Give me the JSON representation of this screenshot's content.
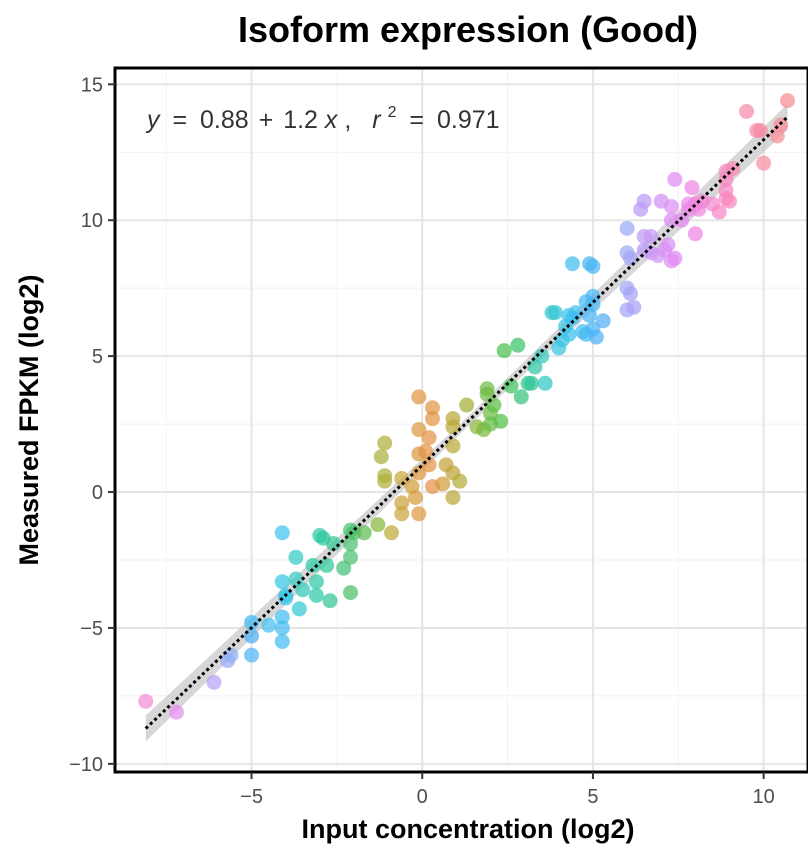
{
  "chart_data": {
    "type": "scatter",
    "title": "Isoform expression (Good)",
    "xlabel": "Input concentration (log2)",
    "ylabel": "Measured FPKM (log2)",
    "xlim": [
      -9,
      11.3
    ],
    "ylim": [
      -10.3,
      15.6
    ],
    "x_ticks": [
      -5,
      0,
      5,
      10
    ],
    "y_ticks": [
      -10,
      -5,
      0,
      5,
      10,
      15
    ],
    "x_tick_labels": [
      "−5",
      "0",
      "5",
      "10"
    ],
    "y_tick_labels": [
      "−10",
      "−5",
      "0",
      "5",
      "10",
      "15"
    ],
    "grid": true,
    "legend": "none",
    "annotation": {
      "y_var": "y",
      "equals": "=",
      "intercept": "0.88",
      "plus": "+",
      "slope": "1.2",
      "x_var": "x",
      "comma": ",",
      "r_var": "r",
      "r_power": "2",
      "r_equals": "=",
      "r2": "0.971"
    },
    "fit_line": {
      "from": [
        -8.1,
        -8.7
      ],
      "to": [
        10.7,
        13.8
      ],
      "ci_halfwidth": 0.3,
      "color": "#000000",
      "ci_color": "#bdbdbd"
    },
    "points": [
      [
        -8.1,
        -7.7,
        "#f28cd5"
      ],
      [
        -7.2,
        -8.1,
        "#e58cf0"
      ],
      [
        -6.1,
        -7.0,
        "#b7a1f5"
      ],
      [
        -5.7,
        -6.2,
        "#9aa6f5"
      ],
      [
        -5.6,
        -6.0,
        "#8eb0f5"
      ],
      [
        -5.0,
        -6.0,
        "#4cb5f5"
      ],
      [
        -5.0,
        -4.8,
        "#3fbaf2"
      ],
      [
        -5.0,
        -5.3,
        "#4bb3f4"
      ],
      [
        -4.5,
        -4.9,
        "#45bff0"
      ],
      [
        -4.1,
        -1.5,
        "#40c4ee"
      ],
      [
        -4.1,
        -3.3,
        "#38c7e3"
      ],
      [
        -4.0,
        -3.8,
        "#38c7e3"
      ],
      [
        -4.1,
        -4.6,
        "#44bdf1"
      ],
      [
        -4.1,
        -5.0,
        "#44bdf1"
      ],
      [
        -4.1,
        -5.5,
        "#44bdf1"
      ],
      [
        -4.0,
        -3.9,
        "#3ec5e8"
      ],
      [
        -3.7,
        -2.4,
        "#35c9c4"
      ],
      [
        -3.7,
        -3.2,
        "#35c9c4"
      ],
      [
        -3.6,
        -4.3,
        "#35c9d2"
      ],
      [
        -3.5,
        -3.6,
        "#34c8b4"
      ],
      [
        -3.2,
        -2.7,
        "#2fc9a8"
      ],
      [
        -3.1,
        -3.3,
        "#2fc9a8"
      ],
      [
        -3.1,
        -3.8,
        "#2fc9a8"
      ],
      [
        -3.0,
        -1.6,
        "#2ec8a0"
      ],
      [
        -2.9,
        -1.7,
        "#2ec8a0"
      ],
      [
        -2.8,
        -2.7,
        "#30c79a"
      ],
      [
        -2.7,
        -4.0,
        "#33c594"
      ],
      [
        -2.6,
        -1.9,
        "#33c594"
      ],
      [
        -2.3,
        -2.8,
        "#43c178"
      ],
      [
        -2.1,
        -1.4,
        "#4ac06f"
      ],
      [
        -2.1,
        -1.9,
        "#4ac06f"
      ],
      [
        -2.1,
        -2.4,
        "#4ac06f"
      ],
      [
        -2.1,
        -3.7,
        "#4cbf6a"
      ],
      [
        -2.0,
        -1.5,
        "#4cbf6a"
      ],
      [
        -1.7,
        -1.5,
        "#5dbd52"
      ],
      [
        -1.3,
        -1.2,
        "#86b83a"
      ],
      [
        -1.2,
        1.3,
        "#a9b23a"
      ],
      [
        -1.1,
        1.8,
        "#b0ae3a"
      ],
      [
        -1.1,
        0.6,
        "#b0ae3a"
      ],
      [
        -1.1,
        0.4,
        "#b0ae3a"
      ],
      [
        -0.9,
        -1.5,
        "#bea93a"
      ],
      [
        -0.6,
        0.5,
        "#c9a63b"
      ],
      [
        -0.6,
        -0.4,
        "#cba43b"
      ],
      [
        -0.6,
        -0.8,
        "#cba43b"
      ],
      [
        -0.3,
        0.2,
        "#d39f3d"
      ],
      [
        -0.2,
        -0.2,
        "#d79d3e"
      ],
      [
        -0.1,
        -0.8,
        "#db9a40"
      ],
      [
        -0.1,
        0.7,
        "#db9a40"
      ],
      [
        -0.1,
        1.4,
        "#db9a40"
      ],
      [
        -0.1,
        2.3,
        "#de9842"
      ],
      [
        -0.1,
        3.5,
        "#e29544"
      ],
      [
        0.1,
        1.5,
        "#e39445"
      ],
      [
        0.2,
        2.0,
        "#e39445"
      ],
      [
        0.2,
        1.0,
        "#e39445"
      ],
      [
        0.3,
        3.1,
        "#e29544"
      ],
      [
        0.3,
        2.7,
        "#e39445"
      ],
      [
        0.3,
        0.2,
        "#e6924a"
      ],
      [
        0.6,
        0.3,
        "#d09c3c"
      ],
      [
        0.7,
        1.0,
        "#c5a23a"
      ],
      [
        0.9,
        2.4,
        "#b9a83a"
      ],
      [
        0.9,
        2.7,
        "#b9a83a"
      ],
      [
        0.9,
        -0.2,
        "#bda63a"
      ],
      [
        0.9,
        1.7,
        "#b9a83a"
      ],
      [
        0.9,
        0.7,
        "#bea43a"
      ],
      [
        1.1,
        0.4,
        "#b4aa3a"
      ],
      [
        1.3,
        3.2,
        "#a4b038"
      ],
      [
        1.6,
        2.4,
        "#8fb63b"
      ],
      [
        1.8,
        2.3,
        "#7cb93f"
      ],
      [
        1.9,
        3.6,
        "#6fbb41"
      ],
      [
        1.9,
        3.8,
        "#6fbb41"
      ],
      [
        2.0,
        2.9,
        "#6abc43"
      ],
      [
        2.0,
        2.5,
        "#6abc43"
      ],
      [
        2.1,
        3.2,
        "#5fbe45"
      ],
      [
        2.3,
        2.6,
        "#54bf48"
      ],
      [
        2.4,
        5.2,
        "#49c050"
      ],
      [
        2.6,
        3.9,
        "#3ec25c"
      ],
      [
        2.8,
        5.4,
        "#39c36a"
      ],
      [
        2.9,
        3.5,
        "#36c47a"
      ],
      [
        3.1,
        4.0,
        "#31c58c"
      ],
      [
        3.2,
        4.0,
        "#30c59a"
      ],
      [
        3.3,
        4.6,
        "#30c5a6"
      ],
      [
        3.5,
        5.0,
        "#31c6ba"
      ],
      [
        3.6,
        4.0,
        "#33c6c4"
      ],
      [
        3.8,
        6.6,
        "#35c6d0"
      ],
      [
        3.9,
        6.6,
        "#37c5d6"
      ],
      [
        4.0,
        5.3,
        "#38c5dc"
      ],
      [
        4.1,
        5.6,
        "#39c3e3"
      ],
      [
        4.2,
        6.1,
        "#3bc2e7"
      ],
      [
        4.3,
        6.5,
        "#3dc0eb"
      ],
      [
        4.3,
        5.8,
        "#3dc0eb"
      ],
      [
        4.4,
        6.4,
        "#3ebfee"
      ],
      [
        4.4,
        8.4,
        "#40bef0"
      ],
      [
        4.5,
        6.6,
        "#41bcf0"
      ],
      [
        4.7,
        5.9,
        "#43bbf2"
      ],
      [
        4.8,
        5.8,
        "#45b9f3"
      ],
      [
        4.8,
        7.0,
        "#45b9f3"
      ],
      [
        4.9,
        8.4,
        "#47b7f4"
      ],
      [
        4.9,
        6.5,
        "#47b7f4"
      ],
      [
        5.0,
        7.2,
        "#4ab5f4"
      ],
      [
        5.0,
        6.9,
        "#4ab5f4"
      ],
      [
        5.0,
        6.0,
        "#4ab5f4"
      ],
      [
        5.0,
        8.3,
        "#4ab5f4"
      ],
      [
        5.1,
        5.7,
        "#4db3f5"
      ],
      [
        5.3,
        6.3,
        "#55aff5"
      ],
      [
        6.0,
        9.7,
        "#9ba7f6"
      ],
      [
        6.0,
        8.8,
        "#9ba7f6"
      ],
      [
        6.0,
        7.5,
        "#a0a5f6"
      ],
      [
        6.0,
        6.7,
        "#a3a4f6"
      ],
      [
        6.1,
        7.3,
        "#a7a2f6"
      ],
      [
        6.2,
        6.8,
        "#aaa1f6"
      ],
      [
        6.1,
        8.6,
        "#a5a3f6"
      ],
      [
        6.4,
        10.4,
        "#b79cf6"
      ],
      [
        6.5,
        10.7,
        "#bd9af6"
      ],
      [
        6.5,
        9.4,
        "#bd9af6"
      ],
      [
        6.5,
        8.9,
        "#bd9af6"
      ],
      [
        6.7,
        8.8,
        "#c698f5"
      ],
      [
        6.7,
        9.4,
        "#c698f5"
      ],
      [
        6.9,
        8.7,
        "#cd95f4"
      ],
      [
        7.0,
        10.7,
        "#d192f4"
      ],
      [
        7.1,
        8.9,
        "#d592f4"
      ],
      [
        7.2,
        9.1,
        "#d98ff3"
      ],
      [
        7.3,
        10.0,
        "#dd8df3"
      ],
      [
        7.3,
        8.5,
        "#de8df2"
      ],
      [
        7.3,
        10.5,
        "#dd8df3"
      ],
      [
        7.4,
        11.5,
        "#e18bf2"
      ],
      [
        7.4,
        8.6,
        "#e18bf2"
      ],
      [
        7.6,
        10.0,
        "#e689f0"
      ],
      [
        7.8,
        10.4,
        "#eb88ec"
      ],
      [
        7.8,
        10.6,
        "#eb88ec"
      ],
      [
        7.9,
        11.2,
        "#ee87e7"
      ],
      [
        8.0,
        10.6,
        "#ef87e3"
      ],
      [
        8.0,
        9.5,
        "#ef87e3"
      ],
      [
        8.1,
        10.4,
        "#f187de"
      ],
      [
        8.2,
        10.7,
        "#f287d9"
      ],
      [
        8.5,
        10.6,
        "#f487cf"
      ],
      [
        8.7,
        10.3,
        "#f588c6"
      ],
      [
        8.9,
        11.1,
        "#f688c0"
      ],
      [
        8.9,
        11.5,
        "#f688c0"
      ],
      [
        8.9,
        11.8,
        "#f688c0"
      ],
      [
        8.9,
        10.8,
        "#f688c0"
      ],
      [
        9.0,
        10.7,
        "#f788ba"
      ],
      [
        9.1,
        11.9,
        "#f789b4"
      ],
      [
        9.5,
        14.0,
        "#f78aab"
      ],
      [
        9.8,
        13.3,
        "#f78ba6"
      ],
      [
        9.9,
        13.3,
        "#f78ba2"
      ],
      [
        10.0,
        12.1,
        "#f78c9e"
      ],
      [
        10.4,
        13.1,
        "#f68d99"
      ],
      [
        10.5,
        13.5,
        "#f68e96"
      ],
      [
        10.7,
        14.4,
        "#f68e93"
      ]
    ]
  }
}
